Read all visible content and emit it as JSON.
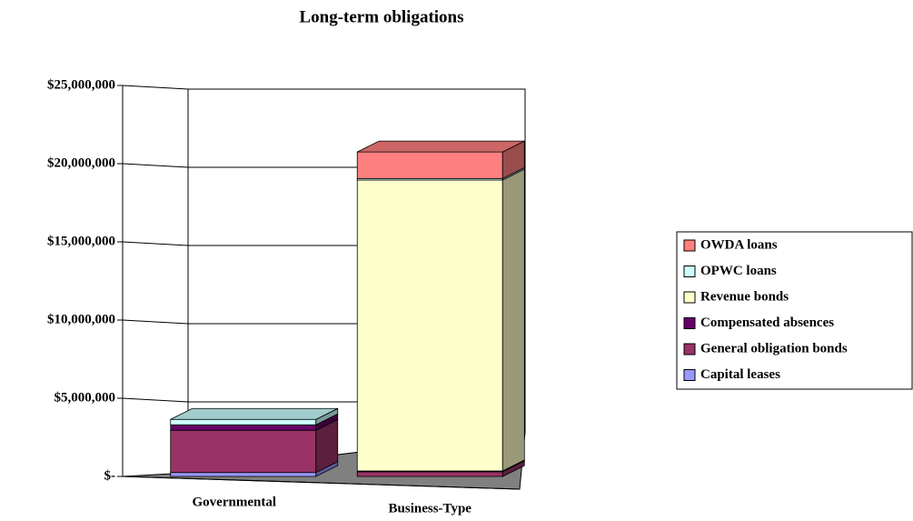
{
  "chart_data": {
    "type": "bar3d_stacked",
    "title": "Long-term obligations",
    "categories": [
      "Governmental",
      "Business-Type"
    ],
    "series": [
      {
        "name": "Capital leases",
        "color": "#9999ff",
        "values": [
          250000,
          0
        ]
      },
      {
        "name": "General obligation bonds",
        "color": "#993366",
        "values": [
          2700000,
          300000
        ]
      },
      {
        "name": "Compensated absences",
        "color": "#660066",
        "values": [
          350000,
          50000
        ]
      },
      {
        "name": "Revenue bonds",
        "color": "#ffffcc",
        "values": [
          0,
          18600000
        ]
      },
      {
        "name": "OPWC loans",
        "color": "#ccffff",
        "values": [
          350000,
          100000
        ]
      },
      {
        "name": "OWDA loans",
        "color": "#ff8080",
        "values": [
          0,
          1700000
        ]
      }
    ],
    "ylim": [
      0,
      25000000
    ],
    "yticks": [
      {
        "value": 0,
        "label": "$-"
      },
      {
        "value": 5000000,
        "label": "$5,000,000"
      },
      {
        "value": 10000000,
        "label": "$10,000,000"
      },
      {
        "value": 15000000,
        "label": "$15,000,000"
      },
      {
        "value": 20000000,
        "label": "$20,000,000"
      },
      {
        "value": 25000000,
        "label": "$25,000,000"
      }
    ],
    "grid": true,
    "legend": "right"
  }
}
